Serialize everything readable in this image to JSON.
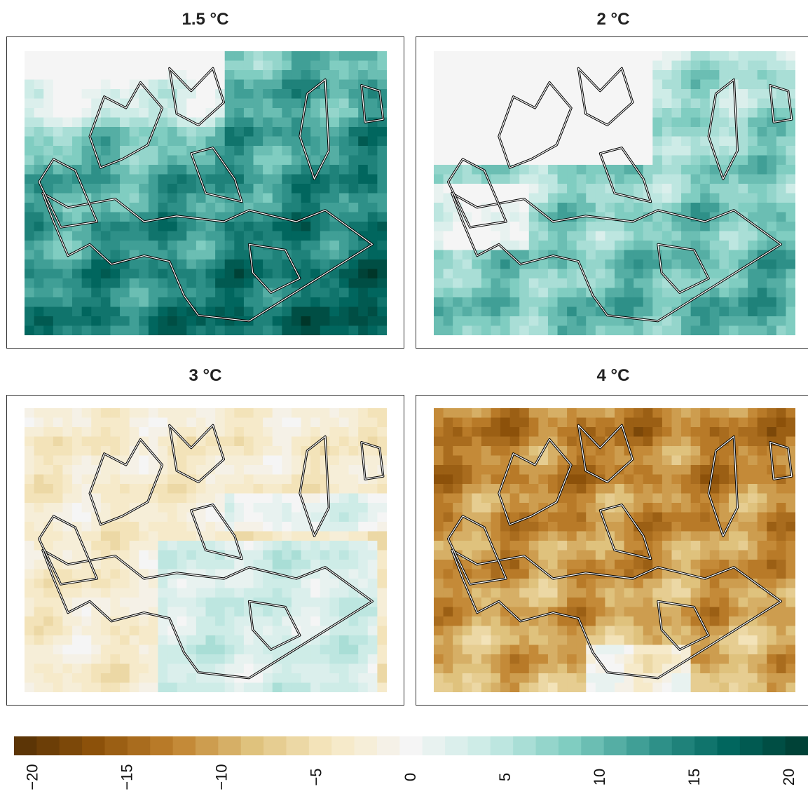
{
  "panels": [
    {
      "title": "1.5 °C",
      "anomaly_mean": 9,
      "anomaly_range": [
        0,
        21
      ]
    },
    {
      "title": "2 °C",
      "anomaly_mean": 5,
      "anomaly_range": [
        0,
        17
      ]
    },
    {
      "title": "3 °C",
      "anomaly_mean": -3,
      "anomaly_range": [
        -9,
        6
      ]
    },
    {
      "title": "4 °C",
      "anomaly_mean": -11,
      "anomaly_range": [
        -20,
        1
      ]
    }
  ],
  "colorbar": {
    "ticks": [
      "−20",
      "−15",
      "−10",
      "−5",
      "0",
      "5",
      "10",
      "15",
      "20"
    ],
    "tick_values": [
      -20,
      -15,
      -10,
      -5,
      0,
      5,
      10,
      15,
      20
    ],
    "range": [
      -21,
      21
    ],
    "n_bins": 35,
    "palette_stops": [
      "#543005",
      "#8c510a",
      "#bf812d",
      "#dfc27d",
      "#f6e8c3",
      "#f5f5f5",
      "#c7eae5",
      "#80cdc1",
      "#35978f",
      "#01665e",
      "#003c30"
    ]
  },
  "chart_data": {
    "type": "heatmap",
    "title": "",
    "facets": [
      "1.5 °C",
      "2 °C",
      "3 °C",
      "4 °C"
    ],
    "value_range": [
      -21,
      21
    ],
    "colorbar_ticks": [
      -20,
      -15,
      -10,
      -5,
      0,
      5,
      10,
      15,
      20
    ]
  }
}
